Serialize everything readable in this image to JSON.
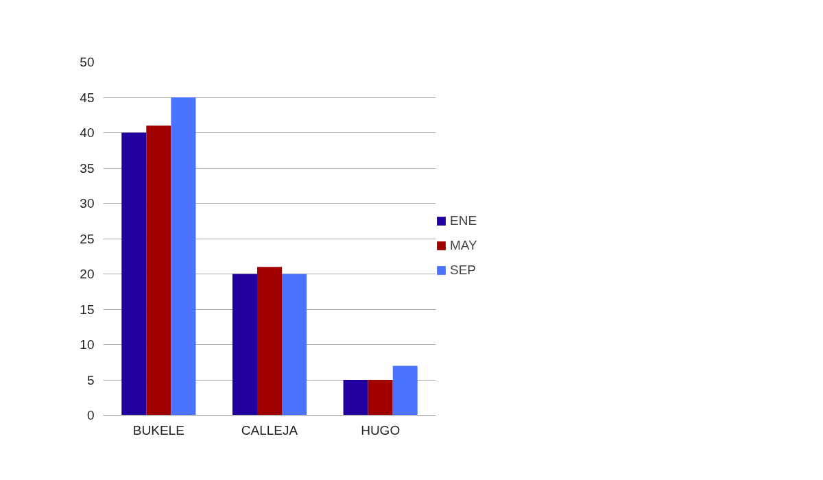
{
  "chart_data": {
    "type": "bar",
    "categories": [
      "BUKELE",
      "CALLEJA",
      "HUGO"
    ],
    "series": [
      {
        "name": "ENE",
        "color": "#2200a0",
        "values": [
          40,
          20,
          5
        ]
      },
      {
        "name": "MAY",
        "color": "#a00000",
        "values": [
          41,
          21,
          5
        ]
      },
      {
        "name": "SEP",
        "color": "#4a74ff",
        "values": [
          45,
          20,
          7
        ]
      }
    ],
    "ylim": [
      0,
      50
    ],
    "yticks": [
      0,
      5,
      10,
      15,
      20,
      25,
      30,
      35,
      40,
      45,
      50
    ],
    "grid": "y",
    "legend": "right"
  }
}
